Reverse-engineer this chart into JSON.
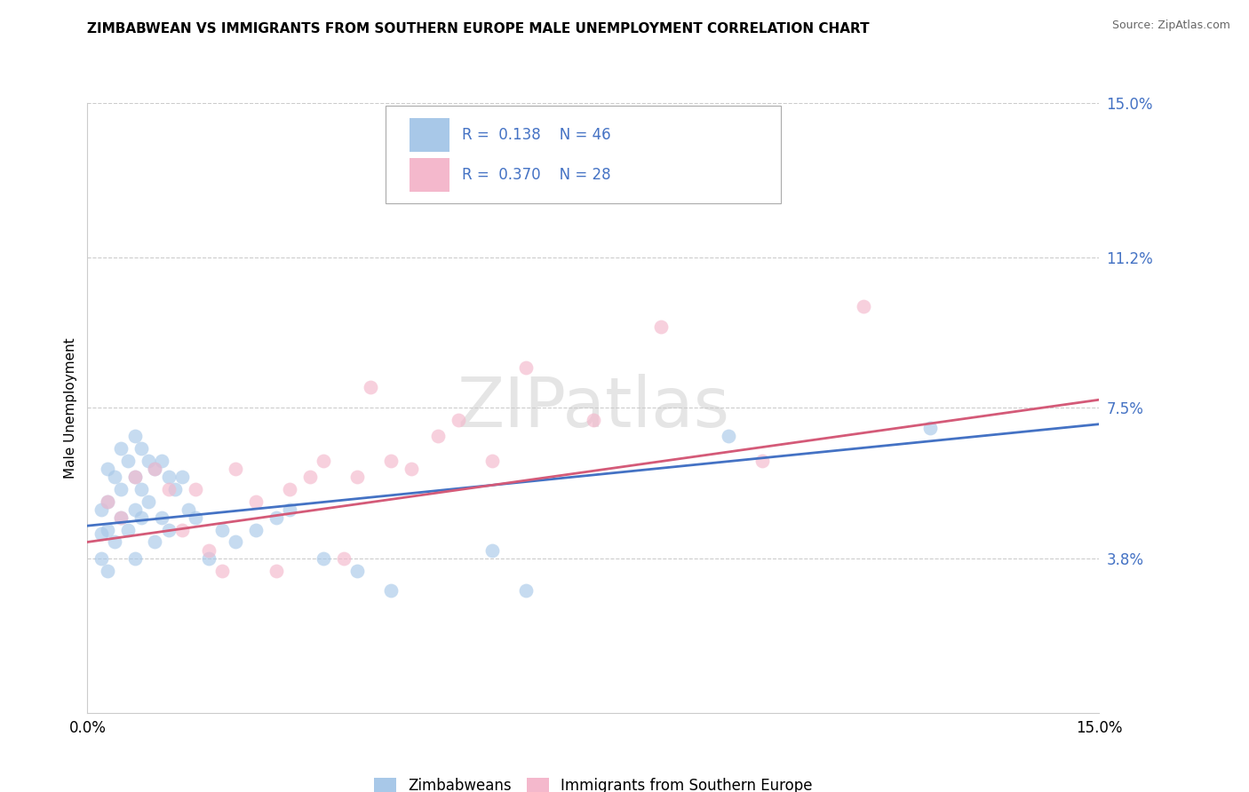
{
  "title": "ZIMBABWEAN VS IMMIGRANTS FROM SOUTHERN EUROPE MALE UNEMPLOYMENT CORRELATION CHART",
  "source": "Source: ZipAtlas.com",
  "ylabel": "Male Unemployment",
  "xlim": [
    0.0,
    0.15
  ],
  "ylim": [
    0.0,
    0.15
  ],
  "ytick_positions": [
    0.038,
    0.075,
    0.112,
    0.15
  ],
  "ytick_labels": [
    "3.8%",
    "7.5%",
    "11.2%",
    "15.0%"
  ],
  "xtick_positions": [
    0.0,
    0.15
  ],
  "xtick_labels": [
    "0.0%",
    "15.0%"
  ],
  "watermark": "ZIPatlas",
  "r1": 0.138,
  "n1": 46,
  "r2": 0.37,
  "n2": 28,
  "label1": "Zimbabweans",
  "label2": "Immigrants from Southern Europe",
  "color_blue": "#a8c8e8",
  "color_pink": "#f4b8cc",
  "line_color_blue": "#4472c4",
  "line_color_pink": "#d45a78",
  "grid_color": "#cccccc",
  "blue_scatter_x": [
    0.002,
    0.002,
    0.002,
    0.003,
    0.003,
    0.003,
    0.003,
    0.004,
    0.004,
    0.005,
    0.005,
    0.005,
    0.006,
    0.006,
    0.007,
    0.007,
    0.007,
    0.007,
    0.008,
    0.008,
    0.008,
    0.009,
    0.009,
    0.01,
    0.01,
    0.011,
    0.011,
    0.012,
    0.012,
    0.013,
    0.014,
    0.015,
    0.016,
    0.018,
    0.02,
    0.022,
    0.025,
    0.028,
    0.03,
    0.035,
    0.04,
    0.045,
    0.06,
    0.065,
    0.095,
    0.125
  ],
  "blue_scatter_y": [
    0.05,
    0.044,
    0.038,
    0.06,
    0.052,
    0.045,
    0.035,
    0.058,
    0.042,
    0.065,
    0.055,
    0.048,
    0.062,
    0.045,
    0.068,
    0.058,
    0.05,
    0.038,
    0.065,
    0.055,
    0.048,
    0.062,
    0.052,
    0.06,
    0.042,
    0.062,
    0.048,
    0.058,
    0.045,
    0.055,
    0.058,
    0.05,
    0.048,
    0.038,
    0.045,
    0.042,
    0.045,
    0.048,
    0.05,
    0.038,
    0.035,
    0.03,
    0.04,
    0.03,
    0.068,
    0.07
  ],
  "pink_scatter_x": [
    0.003,
    0.005,
    0.007,
    0.01,
    0.012,
    0.014,
    0.016,
    0.018,
    0.02,
    0.022,
    0.025,
    0.028,
    0.03,
    0.033,
    0.035,
    0.038,
    0.04,
    0.042,
    0.045,
    0.048,
    0.052,
    0.055,
    0.06,
    0.065,
    0.075,
    0.085,
    0.1,
    0.115
  ],
  "pink_scatter_y": [
    0.052,
    0.048,
    0.058,
    0.06,
    0.055,
    0.045,
    0.055,
    0.04,
    0.035,
    0.06,
    0.052,
    0.035,
    0.055,
    0.058,
    0.062,
    0.038,
    0.058,
    0.08,
    0.062,
    0.06,
    0.068,
    0.072,
    0.062,
    0.085,
    0.072,
    0.095,
    0.062,
    0.1
  ],
  "blue_line_y_start": 0.046,
  "blue_line_y_end": 0.071,
  "pink_line_y_start": 0.042,
  "pink_line_y_end": 0.077
}
